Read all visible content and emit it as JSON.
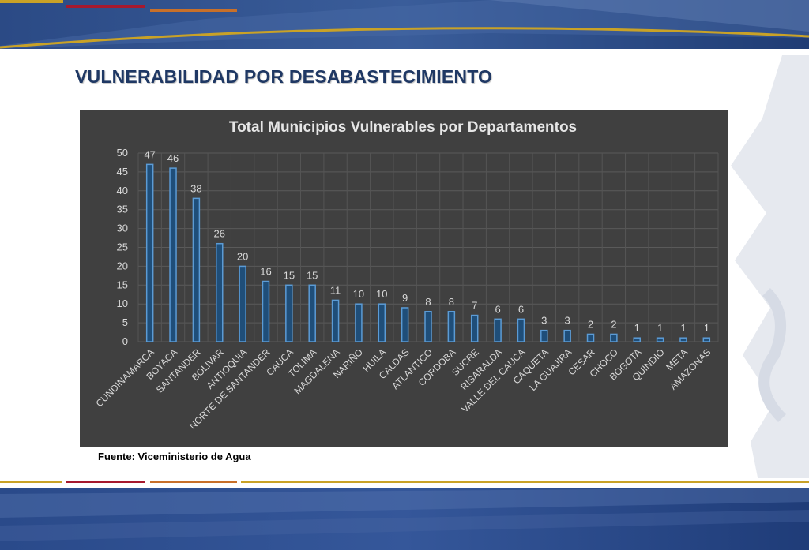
{
  "slide": {
    "title": "VULNERABILIDAD POR DESABASTECIMIENTO",
    "source": "Fuente: Viceministerio de Agua"
  },
  "colors": {
    "title": "#1f3864",
    "chart_background": "#404040",
    "bar_fill": "#1f4e79",
    "bar_stroke": "#5b9bd5",
    "band_navy": "#223f79",
    "accent_red": "#a6192e",
    "accent_orange": "#c8702a",
    "accent_gold": "#c9a227"
  },
  "chart_data": {
    "type": "bar",
    "title": "Total Municipios Vulnerables por Departamentos",
    "xlabel": "",
    "ylabel": "",
    "ylim": [
      0,
      50
    ],
    "yticks": [
      0,
      5,
      10,
      15,
      20,
      25,
      30,
      35,
      40,
      45,
      50
    ],
    "grid": true,
    "legend": "none",
    "categories": [
      "CUNDINAMARCA",
      "BOYACA",
      "SANTANDER",
      "BOLIVAR",
      "ANTIOQUIA",
      "NORTE DE SANTANDER",
      "CAUCA",
      "TOLIMA",
      "MAGDALENA",
      "NARIÑO",
      "HUILA",
      "CALDAS",
      "ATLANTICO",
      "CORDOBA",
      "SUCRE",
      "RISARALDA",
      "VALLE DEL CAUCA",
      "CAQUETA",
      "LA GUAJIRA",
      "CESAR",
      "CHOCO",
      "BOGOTA",
      "QUINDIO",
      "META",
      "AMAZONAS"
    ],
    "values": [
      47,
      46,
      38,
      26,
      20,
      16,
      15,
      15,
      11,
      10,
      10,
      9,
      8,
      8,
      7,
      6,
      6,
      3,
      3,
      2,
      2,
      1,
      1,
      1,
      1
    ]
  }
}
